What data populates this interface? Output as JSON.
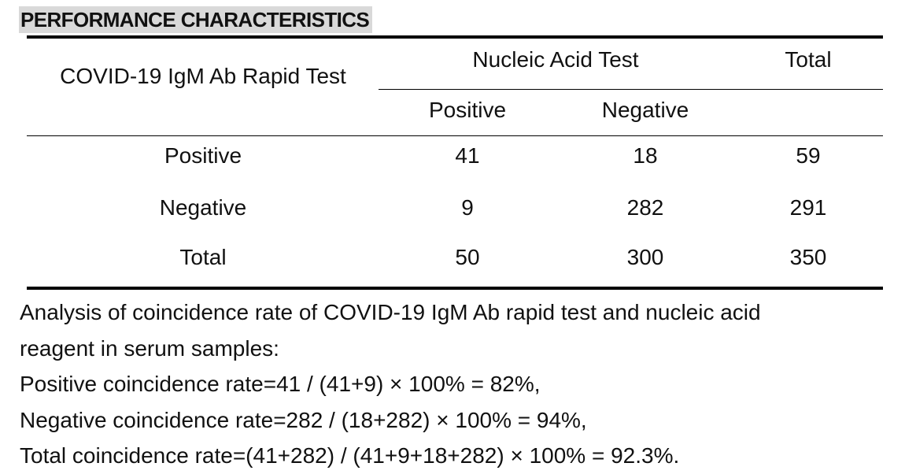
{
  "section_title": "PERFORMANCE CHARACTERISTICS",
  "table": {
    "row_header": "COVID-19 IgM Ab Rapid Test",
    "group_header": "Nucleic Acid Test",
    "total_header": "Total",
    "sub_headers": [
      "Positive",
      "Negative"
    ],
    "rows": [
      {
        "label": "Positive",
        "positive": "41",
        "negative": "18",
        "total": "59"
      },
      {
        "label": "Negative",
        "positive": "9",
        "negative": "282",
        "total": "291"
      },
      {
        "label": "Total",
        "positive": "50",
        "negative": "300",
        "total": "350"
      }
    ]
  },
  "analysis": {
    "intro_line1": "Analysis of coincidence rate of COVID-19 IgM Ab rapid test and nucleic acid",
    "intro_line2": "reagent in serum samples:",
    "positive_rate": "Positive coincidence rate=41 / (41+9) × 100% = 82%,",
    "negative_rate": "Negative coincidence rate=282 / (18+282) × 100% = 94%,",
    "total_rate": "Total coincidence rate=(41+282) / (41+9+18+282) × 100% = 92.3%."
  }
}
